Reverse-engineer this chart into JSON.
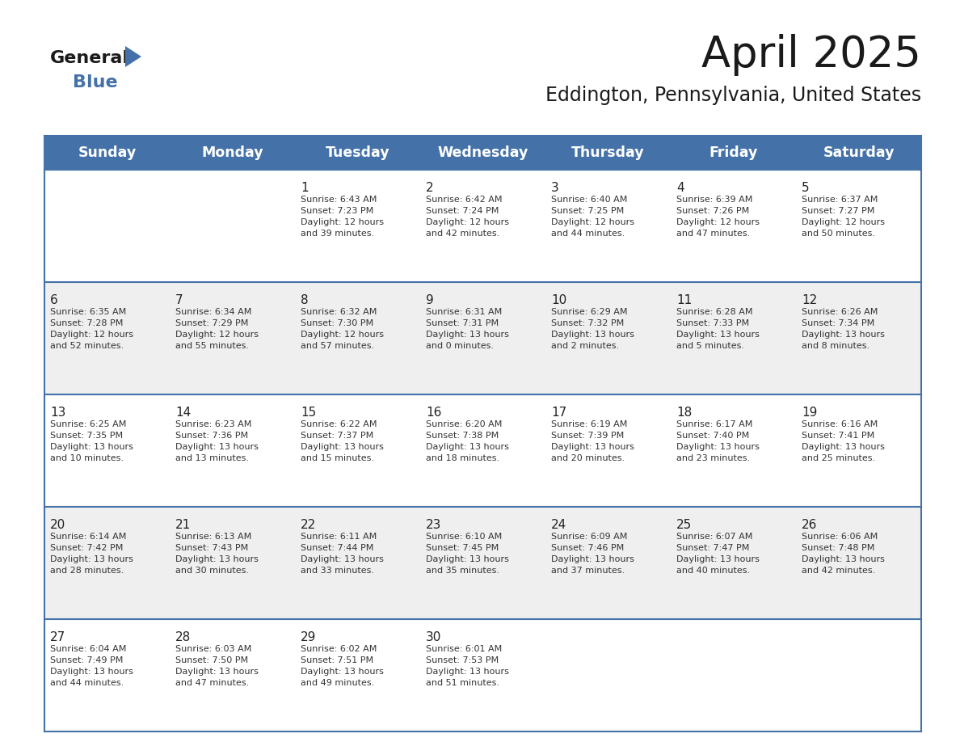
{
  "title": "April 2025",
  "subtitle": "Eddington, Pennsylvania, United States",
  "header_bg": "#4472A8",
  "header_text_color": "#FFFFFF",
  "header_font_size": 12.5,
  "day_names": [
    "Sunday",
    "Monday",
    "Tuesday",
    "Wednesday",
    "Thursday",
    "Friday",
    "Saturday"
  ],
  "title_font_size": 38,
  "subtitle_font_size": 17,
  "cell_text_color": "#333333",
  "cell_date_color": "#222222",
  "row_bg_1": "#FFFFFF",
  "row_bg_2": "#EFEFEF",
  "grid_line_color": "#4472A8",
  "logo_triangle_color": "#4472A8",
  "calendar": [
    [
      {
        "day": "",
        "text": ""
      },
      {
        "day": "",
        "text": ""
      },
      {
        "day": "1",
        "text": "Sunrise: 6:43 AM\nSunset: 7:23 PM\nDaylight: 12 hours\nand 39 minutes."
      },
      {
        "day": "2",
        "text": "Sunrise: 6:42 AM\nSunset: 7:24 PM\nDaylight: 12 hours\nand 42 minutes."
      },
      {
        "day": "3",
        "text": "Sunrise: 6:40 AM\nSunset: 7:25 PM\nDaylight: 12 hours\nand 44 minutes."
      },
      {
        "day": "4",
        "text": "Sunrise: 6:39 AM\nSunset: 7:26 PM\nDaylight: 12 hours\nand 47 minutes."
      },
      {
        "day": "5",
        "text": "Sunrise: 6:37 AM\nSunset: 7:27 PM\nDaylight: 12 hours\nand 50 minutes."
      }
    ],
    [
      {
        "day": "6",
        "text": "Sunrise: 6:35 AM\nSunset: 7:28 PM\nDaylight: 12 hours\nand 52 minutes."
      },
      {
        "day": "7",
        "text": "Sunrise: 6:34 AM\nSunset: 7:29 PM\nDaylight: 12 hours\nand 55 minutes."
      },
      {
        "day": "8",
        "text": "Sunrise: 6:32 AM\nSunset: 7:30 PM\nDaylight: 12 hours\nand 57 minutes."
      },
      {
        "day": "9",
        "text": "Sunrise: 6:31 AM\nSunset: 7:31 PM\nDaylight: 13 hours\nand 0 minutes."
      },
      {
        "day": "10",
        "text": "Sunrise: 6:29 AM\nSunset: 7:32 PM\nDaylight: 13 hours\nand 2 minutes."
      },
      {
        "day": "11",
        "text": "Sunrise: 6:28 AM\nSunset: 7:33 PM\nDaylight: 13 hours\nand 5 minutes."
      },
      {
        "day": "12",
        "text": "Sunrise: 6:26 AM\nSunset: 7:34 PM\nDaylight: 13 hours\nand 8 minutes."
      }
    ],
    [
      {
        "day": "13",
        "text": "Sunrise: 6:25 AM\nSunset: 7:35 PM\nDaylight: 13 hours\nand 10 minutes."
      },
      {
        "day": "14",
        "text": "Sunrise: 6:23 AM\nSunset: 7:36 PM\nDaylight: 13 hours\nand 13 minutes."
      },
      {
        "day": "15",
        "text": "Sunrise: 6:22 AM\nSunset: 7:37 PM\nDaylight: 13 hours\nand 15 minutes."
      },
      {
        "day": "16",
        "text": "Sunrise: 6:20 AM\nSunset: 7:38 PM\nDaylight: 13 hours\nand 18 minutes."
      },
      {
        "day": "17",
        "text": "Sunrise: 6:19 AM\nSunset: 7:39 PM\nDaylight: 13 hours\nand 20 minutes."
      },
      {
        "day": "18",
        "text": "Sunrise: 6:17 AM\nSunset: 7:40 PM\nDaylight: 13 hours\nand 23 minutes."
      },
      {
        "day": "19",
        "text": "Sunrise: 6:16 AM\nSunset: 7:41 PM\nDaylight: 13 hours\nand 25 minutes."
      }
    ],
    [
      {
        "day": "20",
        "text": "Sunrise: 6:14 AM\nSunset: 7:42 PM\nDaylight: 13 hours\nand 28 minutes."
      },
      {
        "day": "21",
        "text": "Sunrise: 6:13 AM\nSunset: 7:43 PM\nDaylight: 13 hours\nand 30 minutes."
      },
      {
        "day": "22",
        "text": "Sunrise: 6:11 AM\nSunset: 7:44 PM\nDaylight: 13 hours\nand 33 minutes."
      },
      {
        "day": "23",
        "text": "Sunrise: 6:10 AM\nSunset: 7:45 PM\nDaylight: 13 hours\nand 35 minutes."
      },
      {
        "day": "24",
        "text": "Sunrise: 6:09 AM\nSunset: 7:46 PM\nDaylight: 13 hours\nand 37 minutes."
      },
      {
        "day": "25",
        "text": "Sunrise: 6:07 AM\nSunset: 7:47 PM\nDaylight: 13 hours\nand 40 minutes."
      },
      {
        "day": "26",
        "text": "Sunrise: 6:06 AM\nSunset: 7:48 PM\nDaylight: 13 hours\nand 42 minutes."
      }
    ],
    [
      {
        "day": "27",
        "text": "Sunrise: 6:04 AM\nSunset: 7:49 PM\nDaylight: 13 hours\nand 44 minutes."
      },
      {
        "day": "28",
        "text": "Sunrise: 6:03 AM\nSunset: 7:50 PM\nDaylight: 13 hours\nand 47 minutes."
      },
      {
        "day": "29",
        "text": "Sunrise: 6:02 AM\nSunset: 7:51 PM\nDaylight: 13 hours\nand 49 minutes."
      },
      {
        "day": "30",
        "text": "Sunrise: 6:01 AM\nSunset: 7:53 PM\nDaylight: 13 hours\nand 51 minutes."
      },
      {
        "day": "",
        "text": ""
      },
      {
        "day": "",
        "text": ""
      },
      {
        "day": "",
        "text": ""
      }
    ]
  ]
}
